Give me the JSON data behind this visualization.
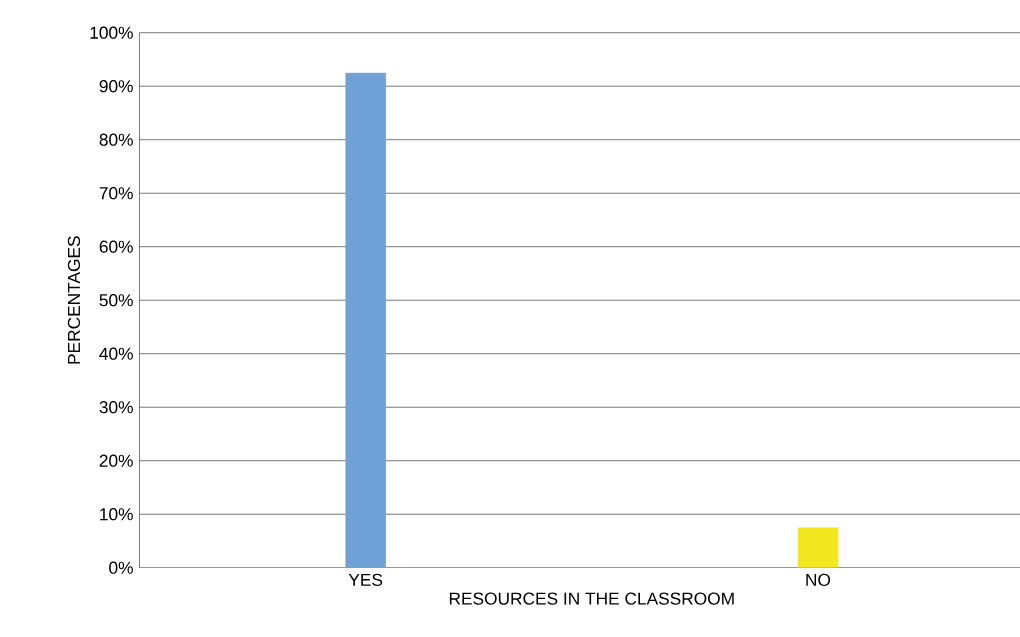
{
  "chart_data": {
    "type": "bar",
    "xlabel": "RESOURCES IN THE CLASSROOM",
    "ylabel": "PERCENTAGES",
    "categories": [
      "YES",
      "NO"
    ],
    "values": [
      92.5,
      7.5
    ],
    "colors": [
      "#6fa0d6",
      "#f2e61e"
    ],
    "ylim": [
      0,
      100
    ],
    "yticks": [
      {
        "value": 0,
        "label": "0%"
      },
      {
        "value": 10,
        "label": "10%"
      },
      {
        "value": 20,
        "label": "20%"
      },
      {
        "value": 30,
        "label": "30%"
      },
      {
        "value": 40,
        "label": "40%"
      },
      {
        "value": 50,
        "label": "50%"
      },
      {
        "value": 60,
        "label": "60%"
      },
      {
        "value": 70,
        "label": "70%"
      },
      {
        "value": 80,
        "label": "80%"
      },
      {
        "value": 90,
        "label": "90%"
      },
      {
        "value": 100,
        "label": "100%"
      }
    ],
    "grid": "y"
  }
}
